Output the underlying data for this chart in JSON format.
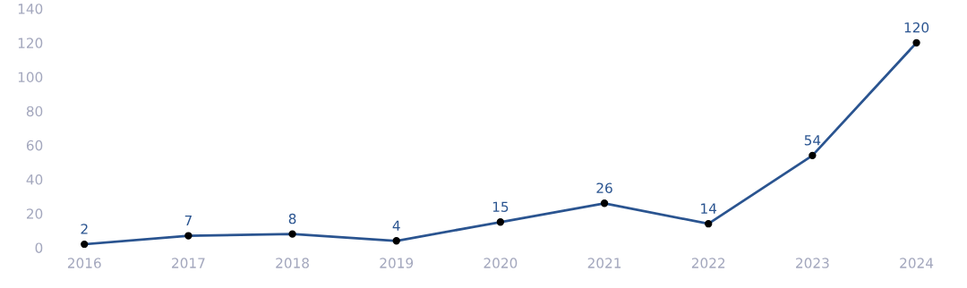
{
  "chart_data": {
    "type": "line",
    "categories": [
      "2016",
      "2017",
      "2018",
      "2019",
      "2020",
      "2021",
      "2022",
      "2023",
      "2024"
    ],
    "series": [
      {
        "color": "#2a5490",
        "values": [
          2,
          7,
          8,
          4,
          15,
          26,
          14,
          54,
          120
        ]
      }
    ],
    "ylim": [
      0,
      140
    ],
    "yticks": [
      0,
      20,
      40,
      60,
      80,
      100,
      120,
      140
    ],
    "grid": false,
    "marker": "circle",
    "line_style": "solid",
    "data_labels": true
  }
}
